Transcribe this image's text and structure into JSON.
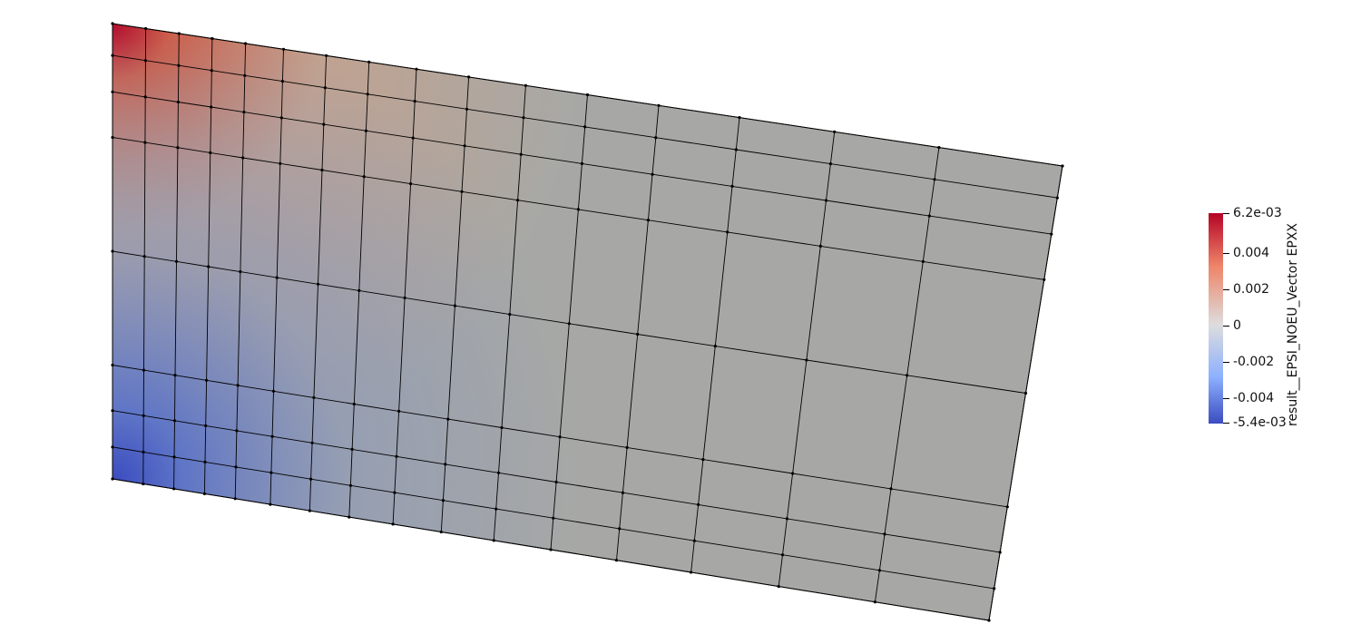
{
  "colorbar": {
    "title": "result__EPSI_NOEU_Vector EPXX",
    "max_label": "6.2e-03",
    "min_label": "-5.4e-03",
    "ticks": [
      {
        "value": 0.004,
        "label": "0.004"
      },
      {
        "value": 0.002,
        "label": "0.002"
      },
      {
        "value": 0,
        "label": "0"
      },
      {
        "value": -0.002,
        "label": "-0.002"
      },
      {
        "value": -0.004,
        "label": "-0.004"
      }
    ],
    "range": [
      -0.0054,
      0.0062
    ],
    "colors": {
      "low": "#3b4cc0",
      "mid": "#dddddd",
      "high": "#b40426"
    }
  },
  "mesh": {
    "line_color": "#000000",
    "node_color": "#000000",
    "far_field_color": "#a7a8a5"
  }
}
